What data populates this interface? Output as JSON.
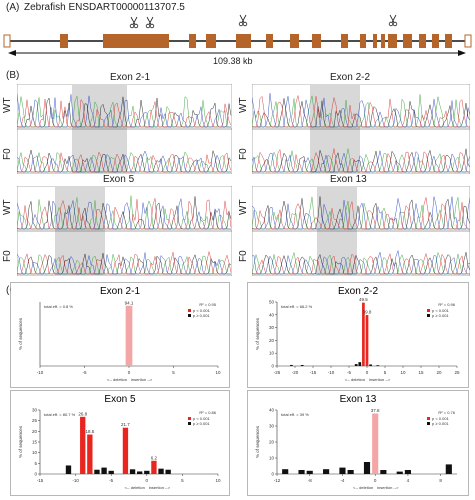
{
  "panelA": {
    "label": "(A)",
    "gene_title": "Zebrafish ENSDART00000113707.5",
    "scale_label": "109.38 kb"
  },
  "panelB": {
    "label": "(B)",
    "traces": [
      {
        "title": "Exon 2-1",
        "rows": [
          "WT",
          "F0"
        ]
      },
      {
        "title": "Exon 2-2",
        "rows": [
          "WT",
          "F0"
        ]
      },
      {
        "title": "Exon 5",
        "rows": [
          "WT",
          "F0"
        ]
      },
      {
        "title": "Exon 13",
        "rows": [
          "WT",
          "F0"
        ]
      }
    ]
  },
  "panelC": {
    "label": "(C)",
    "ylabel": "% of sequences",
    "legend_p1": "p < 0.001",
    "legend_p2": "p ≥ 0.001",
    "xaxis_caption_left": "<-- deletion",
    "xaxis_caption_right": "insertion -->"
  },
  "chart_data": [
    {
      "type": "bar",
      "title": "Exon 2-1",
      "total_eff": "total eff. = 0.8 %",
      "r2": "R² = 0.95",
      "xlim": [
        -10,
        10
      ],
      "ylim": [
        0,
        100
      ],
      "xticks": [
        "-10",
        "-5",
        "0",
        "5",
        "10"
      ],
      "yticks": [],
      "bars": [
        {
          "x": 0,
          "value": 94.1,
          "color": "#f4a6a6",
          "label": "94.1"
        }
      ]
    },
    {
      "type": "bar",
      "title": "Exon 2-2",
      "total_eff": "total eff. = 66.2 %",
      "r2": "R² = 0.96",
      "xlim": [
        -25,
        25
      ],
      "ylim": [
        0,
        50
      ],
      "xticks": [
        "-25",
        "-20",
        "-15",
        "-10",
        "-5",
        "0",
        "5",
        "10",
        "15",
        "20",
        "25"
      ],
      "yticks": [
        "0",
        "10",
        "20",
        "30",
        "40",
        "50"
      ],
      "bars": [
        {
          "x": -1,
          "value": 49.5,
          "color": "#e8261f",
          "label": "49.5"
        },
        {
          "x": 0,
          "value": 39.8,
          "color": "#e8261f",
          "label": "39.8"
        },
        {
          "x": -2,
          "value": 3,
          "color": "#111111",
          "label": ""
        },
        {
          "x": -3,
          "value": 1.5,
          "color": "#111111",
          "label": ""
        },
        {
          "x": -21,
          "value": 0.8,
          "color": "#111111",
          "label": ""
        },
        {
          "x": -18,
          "value": 0.8,
          "color": "#111111",
          "label": ""
        },
        {
          "x": 1,
          "value": 1.2,
          "color": "#111111",
          "label": ""
        },
        {
          "x": 3,
          "value": 0.6,
          "color": "#111111",
          "label": ""
        }
      ]
    },
    {
      "type": "bar",
      "title": "Exon 5",
      "total_eff": "total eff. = 80.7 %",
      "r2": "R² = 0.86",
      "xlim": [
        -15,
        10
      ],
      "ylim": [
        0,
        30
      ],
      "xticks": [
        "-15",
        "-10",
        "-5",
        "0",
        "5",
        "10"
      ],
      "yticks": [
        "0",
        "5",
        "10",
        "15",
        "20",
        "25",
        "30"
      ],
      "bars": [
        {
          "x": -9,
          "value": 26.8,
          "color": "#e8261f",
          "label": "26.8"
        },
        {
          "x": -8,
          "value": 18.5,
          "color": "#e8261f",
          "label": "18.5"
        },
        {
          "x": -3,
          "value": 21.7,
          "color": "#e8261f",
          "label": "21.7"
        },
        {
          "x": 1,
          "value": 6.2,
          "color": "#e8261f",
          "label": "6.2"
        },
        {
          "x": -11,
          "value": 4,
          "color": "#111111",
          "label": ""
        },
        {
          "x": -7,
          "value": 2,
          "color": "#111111",
          "label": ""
        },
        {
          "x": -6,
          "value": 3,
          "color": "#111111",
          "label": ""
        },
        {
          "x": -5,
          "value": 1.5,
          "color": "#111111",
          "label": ""
        },
        {
          "x": -2,
          "value": 2.2,
          "color": "#111111",
          "label": ""
        },
        {
          "x": -1,
          "value": 1.2,
          "color": "#111111",
          "label": ""
        },
        {
          "x": 2,
          "value": 2.5,
          "color": "#111111",
          "label": ""
        },
        {
          "x": 3,
          "value": 2.0,
          "color": "#111111",
          "label": ""
        },
        {
          "x": 0,
          "value": 1.5,
          "color": "#111111",
          "label": ""
        }
      ]
    },
    {
      "type": "bar",
      "title": "Exon 13",
      "total_eff": "total eff. = 39 %",
      "r2": "R² = 0.76",
      "xlim": [
        -12,
        10
      ],
      "ylim": [
        0,
        40
      ],
      "xticks": [
        "-12",
        "-8",
        "-4",
        "0",
        "4",
        "8"
      ],
      "yticks": [
        "0",
        "10",
        "20",
        "30",
        "40"
      ],
      "bars": [
        {
          "x": 0,
          "value": 37.8,
          "color": "#f4a6a6",
          "label": "37.8"
        },
        {
          "x": -11,
          "value": 3,
          "color": "#111111",
          "label": ""
        },
        {
          "x": -9,
          "value": 2.5,
          "color": "#111111",
          "label": ""
        },
        {
          "x": -8,
          "value": 2,
          "color": "#111111",
          "label": ""
        },
        {
          "x": -6,
          "value": 3,
          "color": "#111111",
          "label": ""
        },
        {
          "x": -4,
          "value": 4,
          "color": "#111111",
          "label": ""
        },
        {
          "x": -3,
          "value": 2.5,
          "color": "#111111",
          "label": ""
        },
        {
          "x": -1,
          "value": 7.5,
          "color": "#111111",
          "label": ""
        },
        {
          "x": 1,
          "value": 2.5,
          "color": "#111111",
          "label": ""
        },
        {
          "x": 3,
          "value": 1.5,
          "color": "#111111",
          "label": ""
        },
        {
          "x": 4,
          "value": 2.5,
          "color": "#111111",
          "label": ""
        },
        {
          "x": 9,
          "value": 6,
          "color": "#111111",
          "label": ""
        }
      ]
    }
  ]
}
